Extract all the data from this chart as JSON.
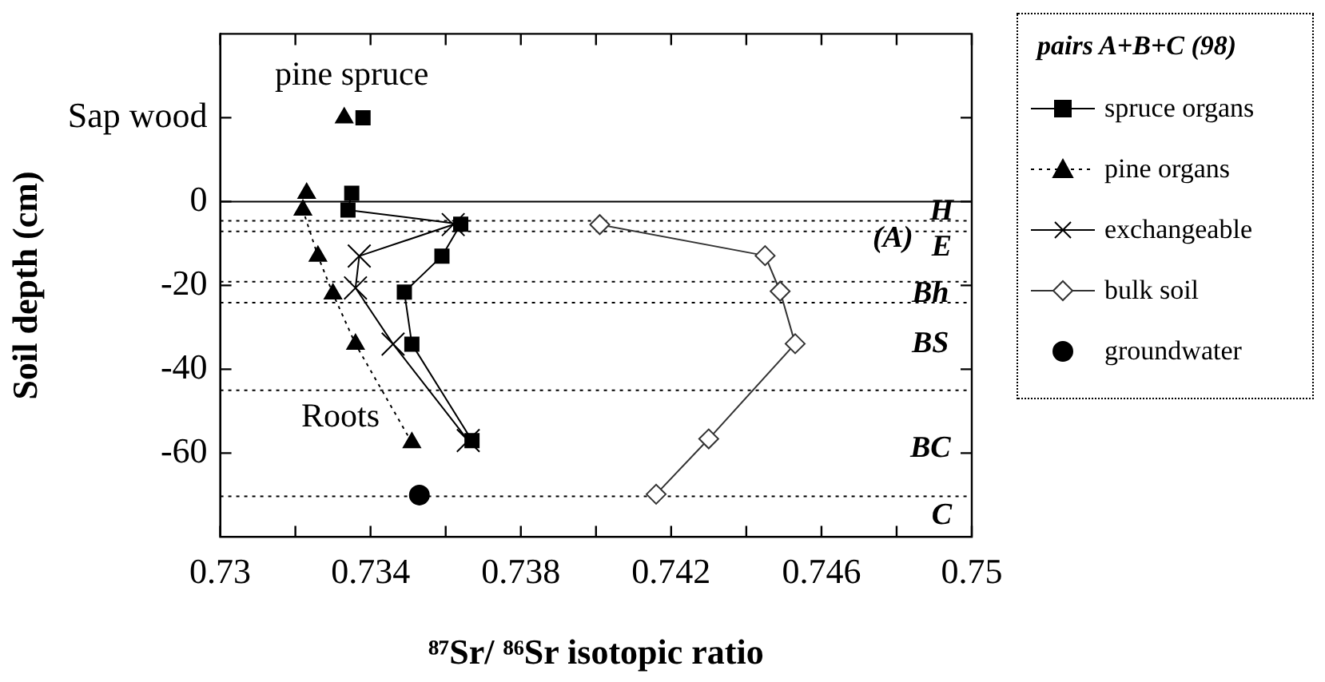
{
  "chart_data": {
    "type": "line",
    "xlabel": "⁸⁷Sr/ ⁸⁶Sr isotopic ratio",
    "ylabel": "Soil depth (cm)",
    "legend_title": "pairs A+B+C (98)",
    "xlim": [
      0.73,
      0.75
    ],
    "xticks": [
      0.73,
      {
        "value": 0.732,
        "label": null
      },
      0.734,
      {
        "value": 0.736,
        "label": null
      },
      0.738,
      {
        "value": 0.74,
        "label": null
      },
      0.742,
      {
        "value": 0.744,
        "label": null
      },
      0.746,
      {
        "value": 0.748,
        "label": null
      },
      0.75
    ],
    "ylim": [
      -80,
      40
    ],
    "yticks": [
      -60,
      -40,
      -20,
      0,
      {
        "value": 20,
        "label": "Sap wood"
      }
    ],
    "legend": "right",
    "grid": false,
    "series": [
      {
        "name": "spruce organs",
        "type": "line",
        "marker": "square",
        "line_style": "solid",
        "color": "#000000",
        "x": [
          0.7338,
          null,
          0.7335,
          0.7334,
          0.7364,
          0.7359,
          0.7349,
          0.7351,
          0.7367
        ],
        "values": [
          20,
          null,
          2,
          -2,
          -5.4,
          -13,
          -21.6,
          -34,
          -57
        ]
      },
      {
        "name": "pine organs",
        "type": "line",
        "marker": "triangle",
        "line_style": "dotted",
        "color": "#000000",
        "x": [
          0.7333,
          null,
          0.7323,
          0.7322,
          0.7326,
          0.733,
          0.7336,
          0.7351
        ],
        "values": [
          20,
          null,
          2,
          -2,
          -13,
          -22,
          -34,
          -57.5
        ]
      },
      {
        "name": "exchangeable",
        "type": "line",
        "marker": "cross",
        "line_style": "solid",
        "color": "#000000",
        "x": [
          0.7362,
          0.7337,
          0.7336,
          0.7346,
          0.7366
        ],
        "values": [
          -5.5,
          -13,
          -20.6,
          -34,
          -57
        ]
      },
      {
        "name": "bulk soil",
        "type": "line",
        "marker": "diamond",
        "line_style": "solid",
        "color": "#333333",
        "x": [
          0.7401,
          0.7445,
          0.7449,
          0.7453,
          0.743,
          0.7416
        ],
        "values": [
          -5.5,
          -12.9,
          -21.4,
          -33.9,
          -56.6,
          -69.8
        ]
      },
      {
        "name": "groundwater",
        "type": "scatter",
        "marker": "circle",
        "color": "#000000",
        "x": [
          0.7353
        ],
        "values": [
          -70
        ]
      }
    ],
    "ref_lines": [
      {
        "axis": "y",
        "value": 0,
        "line_style": "solid",
        "color": "#000000"
      },
      {
        "axis": "y",
        "value": -4.6,
        "line_style": "dotted",
        "color": "#000000"
      },
      {
        "axis": "y",
        "value": -7.1,
        "line_style": "dotted",
        "color": "#000000"
      },
      {
        "axis": "y",
        "value": -19.1,
        "line_style": "dotted",
        "color": "#000000"
      },
      {
        "axis": "y",
        "value": -24.1,
        "line_style": "dotted",
        "color": "#000000"
      },
      {
        "axis": "y",
        "value": -45,
        "line_style": "dotted",
        "color": "#000000"
      },
      {
        "axis": "y",
        "value": -70.3,
        "line_style": "dotted",
        "color": "#000000"
      }
    ],
    "annotations": [
      "pine spruce",
      "Roots",
      "H",
      "(A)",
      "E",
      "Bh",
      "BS",
      "BC",
      "C"
    ]
  }
}
